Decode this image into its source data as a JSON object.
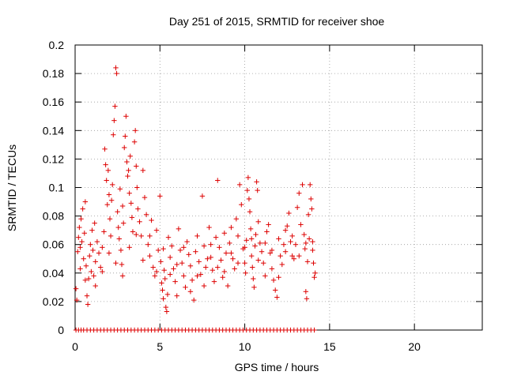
{
  "chart_data": {
    "type": "scatter",
    "title": "Day 251 of 2015, SRMTID for receiver shoe",
    "xlabel": "GPS time / hours",
    "ylabel": "SRMTID / TECUs",
    "xlim": [
      0,
      24
    ],
    "ylim": [
      0,
      0.2
    ],
    "x_ticks": [
      0,
      5,
      10,
      15,
      20
    ],
    "y_ticks": [
      0,
      0.02,
      0.04,
      0.06,
      0.08,
      0.1,
      0.12,
      0.14,
      0.16,
      0.18,
      0.2
    ],
    "x_tick_labels": [
      "0",
      "5",
      "10",
      "15",
      "20"
    ],
    "y_tick_labels": [
      "0",
      "0.02",
      "0.04",
      "0.06",
      "0.08",
      "0.1",
      "0.12",
      "0.14",
      "0.16",
      "0.18",
      "0.2"
    ],
    "grid": true,
    "marker": "+",
    "color": "#dd0000",
    "series": [
      {
        "name": "SRMTID",
        "points": [
          [
            0.05,
            0.029
          ],
          [
            0.1,
            0.021
          ],
          [
            0.15,
            0.055
          ],
          [
            0.2,
            0.065
          ],
          [
            0.25,
            0.072
          ],
          [
            0.3,
            0.058
          ],
          [
            0.35,
            0.078
          ],
          [
            0.4,
            0.062
          ],
          [
            0.45,
            0.085
          ],
          [
            0.5,
            0.05
          ],
          [
            0.55,
            0.068
          ],
          [
            0.6,
            0.09
          ],
          [
            0.65,
            0.045
          ],
          [
            0.7,
            0.024
          ],
          [
            0.75,
            0.018
          ],
          [
            0.8,
            0.036
          ],
          [
            0.85,
            0.052
          ],
          [
            0.9,
            0.06
          ],
          [
            0.95,
            0.041
          ],
          [
            1.0,
            0.07
          ],
          [
            1.05,
            0.056
          ],
          [
            1.1,
            0.038
          ],
          [
            1.15,
            0.075
          ],
          [
            1.2,
            0.048
          ],
          [
            1.3,
            0.062
          ],
          [
            1.4,
            0.054
          ],
          [
            1.5,
            0.044
          ],
          [
            1.6,
            0.058
          ],
          [
            1.7,
            0.069
          ],
          [
            1.75,
            0.127
          ],
          [
            1.8,
            0.116
          ],
          [
            1.85,
            0.105
          ],
          [
            1.9,
            0.088
          ],
          [
            1.95,
            0.112
          ],
          [
            2.0,
            0.095
          ],
          [
            2.05,
            0.078
          ],
          [
            2.1,
            0.066
          ],
          [
            2.15,
            0.091
          ],
          [
            2.2,
            0.102
          ],
          [
            2.25,
            0.137
          ],
          [
            2.3,
            0.147
          ],
          [
            2.35,
            0.157
          ],
          [
            2.4,
            0.184
          ],
          [
            2.45,
            0.18
          ],
          [
            2.5,
            0.083
          ],
          [
            2.55,
            0.072
          ],
          [
            2.6,
            0.064
          ],
          [
            2.65,
            0.099
          ],
          [
            2.7,
            0.056
          ],
          [
            2.75,
            0.046
          ],
          [
            2.8,
            0.087
          ],
          [
            2.85,
            0.075
          ],
          [
            2.9,
            0.128
          ],
          [
            2.95,
            0.136
          ],
          [
            3.0,
            0.15
          ],
          [
            3.05,
            0.118
          ],
          [
            3.1,
            0.108
          ],
          [
            3.15,
            0.112
          ],
          [
            3.2,
            0.096
          ],
          [
            3.25,
            0.122
          ],
          [
            3.3,
            0.089
          ],
          [
            3.35,
            0.079
          ],
          [
            3.4,
            0.069
          ],
          [
            3.5,
            0.132
          ],
          [
            3.55,
            0.14
          ],
          [
            3.6,
            0.115
          ],
          [
            3.65,
            0.1
          ],
          [
            3.7,
            0.085
          ],
          [
            3.8,
            0.076
          ],
          [
            3.9,
            0.066
          ],
          [
            4.0,
            0.112
          ],
          [
            4.1,
            0.093
          ],
          [
            4.2,
            0.081
          ],
          [
            4.3,
            0.06
          ],
          [
            4.4,
            0.052
          ],
          [
            4.5,
            0.077
          ],
          [
            4.6,
            0.044
          ],
          [
            4.7,
            0.038
          ],
          [
            4.8,
            0.07
          ],
          [
            4.9,
            0.056
          ],
          [
            5.0,
            0.094
          ],
          [
            5.05,
            0.048
          ],
          [
            5.1,
            0.033
          ],
          [
            5.15,
            0.028
          ],
          [
            5.2,
            0.022
          ],
          [
            5.25,
            0.042
          ],
          [
            5.3,
            0.036
          ],
          [
            5.35,
            0.016
          ],
          [
            5.4,
            0.013
          ],
          [
            5.45,
            0.025
          ],
          [
            5.5,
            0.065
          ],
          [
            5.6,
            0.051
          ],
          [
            5.7,
            0.059
          ],
          [
            5.8,
            0.043
          ],
          [
            5.9,
            0.034
          ],
          [
            6.0,
            0.024
          ],
          [
            6.1,
            0.071
          ],
          [
            6.2,
            0.056
          ],
          [
            6.3,
            0.047
          ],
          [
            6.4,
            0.038
          ],
          [
            6.5,
            0.03
          ],
          [
            6.6,
            0.062
          ],
          [
            6.7,
            0.053
          ],
          [
            6.8,
            0.045
          ],
          [
            6.9,
            0.035
          ],
          [
            7.0,
            0.021
          ],
          [
            7.1,
            0.055
          ],
          [
            7.2,
            0.066
          ],
          [
            7.3,
            0.048
          ],
          [
            7.4,
            0.039
          ],
          [
            7.5,
            0.094
          ],
          [
            7.6,
            0.059
          ],
          [
            7.7,
            0.044
          ],
          [
            7.8,
            0.05
          ],
          [
            7.9,
            0.072
          ],
          [
            8.0,
            0.06
          ],
          [
            8.1,
            0.042
          ],
          [
            8.2,
            0.034
          ],
          [
            8.3,
            0.065
          ],
          [
            8.4,
            0.105
          ],
          [
            8.5,
            0.058
          ],
          [
            8.6,
            0.049
          ],
          [
            8.7,
            0.037
          ],
          [
            8.8,
            0.068
          ],
          [
            8.9,
            0.054
          ],
          [
            9.0,
            0.031
          ],
          [
            9.1,
            0.061
          ],
          [
            9.2,
            0.072
          ],
          [
            9.3,
            0.05
          ],
          [
            9.4,
            0.043
          ],
          [
            9.5,
            0.078
          ],
          [
            9.6,
            0.066
          ],
          [
            9.7,
            0.102
          ],
          [
            9.8,
            0.088
          ],
          [
            9.9,
            0.057
          ],
          [
            10.0,
            0.047
          ],
          [
            10.05,
            0.04
          ],
          [
            10.1,
            0.063
          ],
          [
            10.15,
            0.098
          ],
          [
            10.2,
            0.107
          ],
          [
            10.25,
            0.092
          ],
          [
            10.3,
            0.083
          ],
          [
            10.35,
            0.071
          ],
          [
            10.4,
            0.052
          ],
          [
            10.45,
            0.044
          ],
          [
            10.5,
            0.036
          ],
          [
            10.55,
            0.03
          ],
          [
            10.6,
            0.059
          ],
          [
            10.65,
            0.067
          ],
          [
            10.7,
            0.104
          ],
          [
            10.75,
            0.098
          ],
          [
            10.8,
            0.076
          ],
          [
            10.9,
            0.061
          ],
          [
            11.0,
            0.055
          ],
          [
            11.1,
            0.047
          ],
          [
            11.2,
            0.038
          ],
          [
            11.3,
            0.069
          ],
          [
            11.4,
            0.074
          ],
          [
            11.5,
            0.054
          ],
          [
            11.6,
            0.043
          ],
          [
            11.7,
            0.035
          ],
          [
            11.8,
            0.028
          ],
          [
            11.9,
            0.023
          ],
          [
            12.0,
            0.064
          ],
          [
            12.1,
            0.052
          ],
          [
            12.2,
            0.046
          ],
          [
            12.3,
            0.06
          ],
          [
            12.4,
            0.07
          ],
          [
            12.5,
            0.073
          ],
          [
            12.6,
            0.082
          ],
          [
            12.7,
            0.062
          ],
          [
            12.8,
            0.052
          ],
          [
            12.9,
            0.05
          ],
          [
            13.0,
            0.06
          ],
          [
            13.1,
            0.086
          ],
          [
            13.2,
            0.096
          ],
          [
            13.3,
            0.074
          ],
          [
            13.4,
            0.102
          ],
          [
            13.5,
            0.067
          ],
          [
            13.55,
            0.057
          ],
          [
            13.6,
            0.027
          ],
          [
            13.65,
            0.022
          ],
          [
            13.7,
            0.048
          ],
          [
            13.75,
            0.081
          ],
          [
            13.8,
            0.064
          ],
          [
            13.85,
            0.102
          ],
          [
            13.9,
            0.092
          ],
          [
            13.95,
            0.085
          ],
          [
            14.0,
            0.062
          ],
          [
            14.05,
            0.047
          ],
          [
            14.1,
            0.037
          ],
          [
            14.15,
            0.04
          ],
          [
            0.3,
            0.043
          ],
          [
            0.6,
            0.035
          ],
          [
            1.2,
            0.031
          ],
          [
            1.6,
            0.041
          ],
          [
            2.0,
            0.054
          ],
          [
            2.4,
            0.047
          ],
          [
            2.8,
            0.038
          ],
          [
            3.2,
            0.058
          ],
          [
            3.6,
            0.067
          ],
          [
            4.0,
            0.049
          ],
          [
            4.4,
            0.066
          ],
          [
            4.8,
            0.041
          ],
          [
            5.2,
            0.057
          ],
          [
            5.6,
            0.039
          ],
          [
            6.0,
            0.046
          ],
          [
            6.4,
            0.058
          ],
          [
            6.8,
            0.027
          ],
          [
            7.2,
            0.038
          ],
          [
            7.6,
            0.031
          ],
          [
            8.0,
            0.051
          ],
          [
            8.4,
            0.044
          ],
          [
            8.8,
            0.041
          ],
          [
            9.2,
            0.054
          ],
          [
            9.6,
            0.047
          ],
          [
            10.0,
            0.058
          ],
          [
            10.4,
            0.064
          ],
          [
            10.8,
            0.049
          ],
          [
            11.2,
            0.061
          ],
          [
            11.6,
            0.056
          ],
          [
            12.0,
            0.037
          ],
          [
            12.4,
            0.055
          ],
          [
            12.8,
            0.066
          ],
          [
            13.2,
            0.052
          ],
          [
            13.6,
            0.061
          ],
          [
            14.0,
            0.056
          ]
        ]
      }
    ],
    "zero_value_times": [
      0.05,
      0.2,
      0.35,
      0.5,
      0.7,
      0.9,
      1.1,
      1.3,
      1.5,
      1.7,
      1.9,
      2.1,
      2.3,
      2.5,
      2.7,
      2.9,
      3.1,
      3.3,
      3.5,
      3.7,
      3.9,
      4.1,
      4.3,
      4.5,
      4.7,
      4.9,
      5.1,
      5.3,
      5.5,
      5.7,
      5.9,
      6.1,
      6.3,
      6.5,
      6.7,
      6.9,
      7.1,
      7.3,
      7.5,
      7.7,
      7.9,
      8.1,
      8.3,
      8.5,
      8.7,
      8.9,
      9.1,
      9.3,
      9.5,
      9.7,
      9.9,
      10.1,
      10.3,
      10.5,
      10.7,
      10.9,
      11.1,
      11.3,
      11.5,
      11.7,
      11.9,
      12.1,
      12.3,
      12.5,
      12.7,
      12.9,
      13.1,
      13.3,
      13.5,
      13.7,
      13.9,
      14.1
    ]
  }
}
